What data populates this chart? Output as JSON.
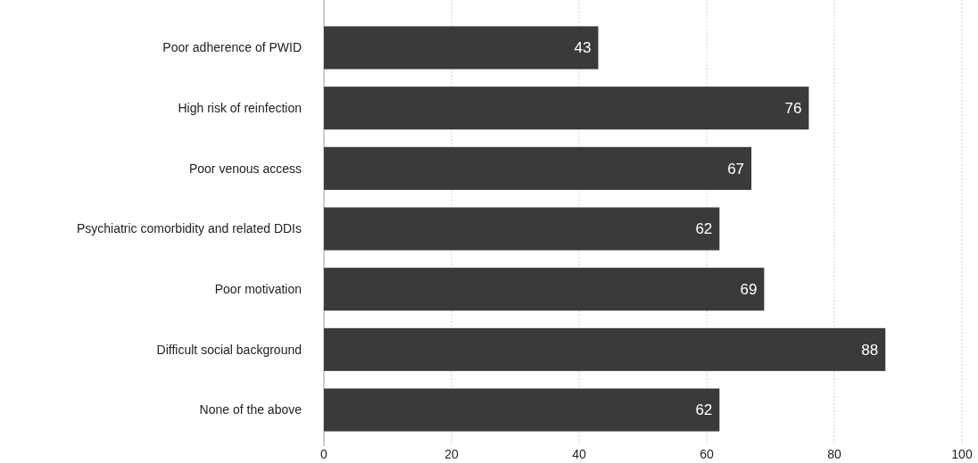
{
  "chart_data": {
    "type": "bar",
    "orientation": "horizontal",
    "categories": [
      "Poor adherence of PWID",
      "High risk of reinfection",
      "Poor venous access",
      "Psychiatric comorbidity and related DDIs",
      "Poor motivation",
      "Difficult social background",
      "None of the above"
    ],
    "values": [
      43,
      76,
      67,
      62,
      69,
      88,
      62
    ],
    "color": "#3a3a3a",
    "data_labels": true,
    "xlim": [
      0,
      100
    ],
    "xticks": [
      0,
      20,
      40,
      60,
      80,
      100
    ],
    "grid": "x"
  }
}
